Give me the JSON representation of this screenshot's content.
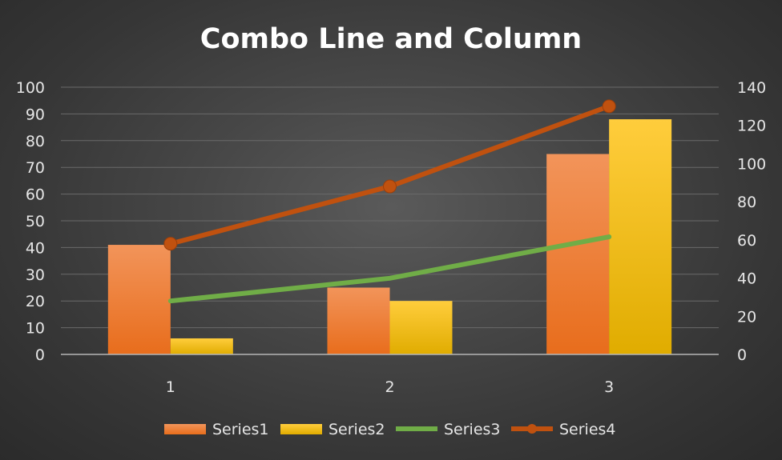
{
  "chart_data": {
    "type": "bar",
    "title": "Combo Line and Column",
    "categories": [
      "1",
      "2",
      "3"
    ],
    "xlabel": "",
    "ylabel": "",
    "ylim": [
      0,
      100
    ],
    "y2lim": [
      0,
      140
    ],
    "y_ticks": [
      "0",
      "10",
      "20",
      "30",
      "40",
      "50",
      "60",
      "70",
      "80",
      "90",
      "100"
    ],
    "y2_ticks": [
      "0",
      "20",
      "40",
      "60",
      "80",
      "100",
      "120",
      "140"
    ],
    "grid": true,
    "legend_position": "bottom",
    "series": [
      {
        "name": "Series1",
        "type": "bar",
        "axis": "primary",
        "values": [
          41,
          25,
          75
        ],
        "color": "#f0873a"
      },
      {
        "name": "Series2",
        "type": "bar",
        "axis": "primary",
        "values": [
          6,
          20,
          88
        ],
        "color": "#ffc000"
      },
      {
        "name": "Series3",
        "type": "line",
        "axis": "primary",
        "values": [
          20,
          28.5,
          44
        ],
        "color": "#70ad47"
      },
      {
        "name": "Series4",
        "type": "line-marker",
        "axis": "secondary",
        "values": [
          58,
          88,
          130
        ],
        "color": "#c0510f"
      }
    ]
  }
}
